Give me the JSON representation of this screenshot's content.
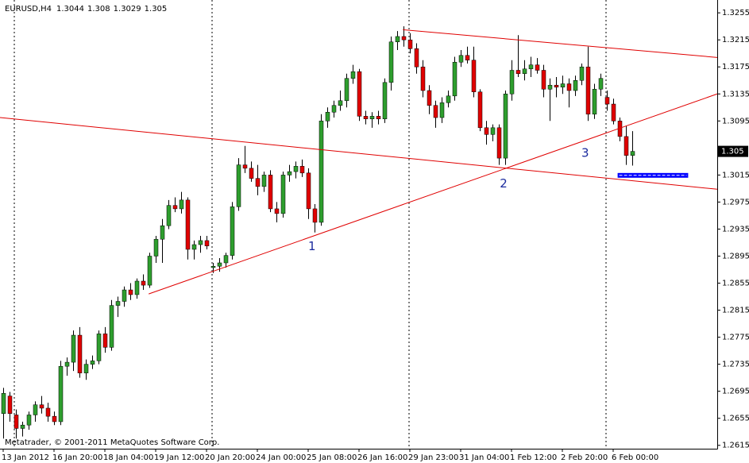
{
  "chart_data": {
    "type": "candlestick",
    "title": "EURUSD,H4",
    "footer": "Metatrader, © 2001-2011 MetaQuotes Software Corp.",
    "categories": [
      "13 Jan 2012",
      null,
      null,
      null,
      null,
      null,
      null,
      null,
      "16 Jan 20:00",
      null,
      null,
      null,
      null,
      null,
      null,
      null,
      "18 Jan 04:00",
      null,
      null,
      null,
      null,
      null,
      null,
      null,
      "19 Jan 12:00",
      null,
      null,
      null,
      null,
      null,
      null,
      null,
      "20 Jan 20:00",
      null,
      null,
      null,
      null,
      null,
      null,
      null,
      "24 Jan 00:00",
      null,
      null,
      null,
      null,
      null,
      null,
      null,
      "25 Jan 08:00",
      null,
      null,
      null,
      null,
      null,
      null,
      null,
      "26 Jan 16:00",
      null,
      null,
      null,
      null,
      null,
      null,
      null,
      "29 Jan 23:00",
      null,
      null,
      null,
      null,
      null,
      null,
      null,
      "31 Jan 04:00",
      null,
      null,
      null,
      null,
      null,
      null,
      null,
      "1 Feb 12:00",
      null,
      null,
      null,
      null,
      null,
      null,
      null,
      "2 Feb 20:00",
      null,
      null,
      null,
      null,
      null,
      null,
      null,
      "6 Feb 00:00",
      null,
      null,
      null
    ],
    "open": [
      1.2662,
      1.2688,
      1.266,
      1.264,
      1.2645,
      1.266,
      1.2675,
      1.267,
      1.2658,
      1.265,
      1.2732,
      1.2738,
      1.2778,
      1.2722,
      1.2735,
      1.274,
      1.278,
      1.276,
      1.2822,
      1.2828,
      1.2845,
      1.2838,
      1.2858,
      1.2852,
      1.2895,
      1.292,
      1.294,
      1.297,
      1.2965,
      1.2978,
      1.2905,
      1.2912,
      1.2918,
      1.2878,
      1.288,
      1.2885,
      1.2896,
      1.2968,
      1.303,
      1.3025,
      1.301,
      1.2998,
      1.3015,
      1.2965,
      1.2958,
      1.3015,
      1.302,
      1.3028,
      1.3018,
      1.2965,
      1.2945,
      1.3095,
      1.3108,
      1.3118,
      1.3125,
      1.3158,
      1.3168,
      1.3102,
      1.3098,
      1.3102,
      1.3098,
      1.3152,
      1.3212,
      1.322,
      1.3215,
      1.3202,
      1.3175,
      1.314,
      1.3118,
      1.31,
      1.3122,
      1.3132,
      1.3182,
      1.3192,
      1.3185,
      1.3138,
      1.3085,
      1.3075,
      1.3085,
      1.304,
      1.3135,
      1.317,
      1.3165,
      1.3172,
      1.3178,
      1.317,
      1.3142,
      1.3148,
      1.3145,
      1.315,
      1.314,
      1.3155,
      1.3175,
      1.3105,
      1.3142,
      1.313,
      1.312,
      1.3095,
      1.3072,
      1.3044
    ],
    "high": [
      1.27,
      1.2694,
      1.2668,
      1.265,
      1.2665,
      1.268,
      1.2688,
      1.2678,
      1.2665,
      1.274,
      1.2745,
      1.2785,
      1.279,
      1.2742,
      1.2748,
      1.2785,
      1.279,
      1.283,
      1.2835,
      1.285,
      1.2855,
      1.2862,
      1.2868,
      1.29,
      1.2925,
      1.295,
      1.2978,
      1.2982,
      1.299,
      1.2982,
      1.2918,
      1.2925,
      1.2925,
      1.2885,
      1.2892,
      1.29,
      1.2975,
      1.304,
      1.3058,
      1.3035,
      1.303,
      1.302,
      1.3022,
      1.2975,
      1.302,
      1.303,
      1.3035,
      1.3038,
      1.3025,
      1.2972,
      1.3105,
      1.3115,
      1.3125,
      1.314,
      1.3165,
      1.3178,
      1.3172,
      1.311,
      1.3108,
      1.311,
      1.3158,
      1.322,
      1.3228,
      1.3235,
      1.3225,
      1.321,
      1.3185,
      1.3148,
      1.3125,
      1.313,
      1.314,
      1.319,
      1.32,
      1.3205,
      1.3205,
      1.3142,
      1.3095,
      1.309,
      1.309,
      1.314,
      1.3185,
      1.3222,
      1.3185,
      1.319,
      1.3188,
      1.3178,
      1.3158,
      1.316,
      1.3162,
      1.3158,
      1.3162,
      1.318,
      1.3205,
      1.315,
      1.3165,
      1.314,
      1.3128,
      1.31,
      1.3088,
      1.308
    ],
    "low": [
      1.2625,
      1.265,
      1.2625,
      1.2628,
      1.2638,
      1.265,
      1.2662,
      1.265,
      1.2645,
      1.2645,
      1.2718,
      1.2725,
      1.2715,
      1.2712,
      1.2728,
      1.2735,
      1.2752,
      1.2755,
      1.2805,
      1.282,
      1.283,
      1.2832,
      1.2845,
      1.2848,
      1.2885,
      1.2885,
      1.2935,
      1.296,
      1.2958,
      1.289,
      1.289,
      1.29,
      1.2905,
      1.287,
      1.2872,
      1.2878,
      1.289,
      1.2962,
      1.3018,
      1.3005,
      1.2985,
      1.299,
      1.296,
      1.2945,
      1.2952,
      1.3005,
      1.301,
      1.3012,
      1.295,
      1.293,
      1.294,
      1.3085,
      1.31,
      1.311,
      1.3115,
      1.315,
      1.3095,
      1.309,
      1.3085,
      1.309,
      1.3092,
      1.314,
      1.32,
      1.3205,
      1.3195,
      1.3165,
      1.313,
      1.3105,
      1.3085,
      1.3092,
      1.3115,
      1.3125,
      1.3175,
      1.318,
      1.313,
      1.308,
      1.306,
      1.3065,
      1.303,
      1.303,
      1.3125,
      1.316,
      1.3155,
      1.316,
      1.3165,
      1.313,
      1.3095,
      1.313,
      1.3135,
      1.3115,
      1.3132,
      1.3148,
      1.3095,
      1.3098,
      1.3132,
      1.311,
      1.309,
      1.3065,
      1.303,
      1.3029
    ],
    "close": [
      1.2692,
      1.2662,
      1.264,
      1.2645,
      1.266,
      1.2675,
      1.267,
      1.2658,
      1.265,
      1.2732,
      1.2738,
      1.2778,
      1.2722,
      1.2735,
      1.274,
      1.278,
      1.276,
      1.2822,
      1.2828,
      1.2845,
      1.2838,
      1.2858,
      1.2852,
      1.2895,
      1.292,
      1.294,
      1.297,
      1.2965,
      1.2978,
      1.2905,
      1.2912,
      1.2918,
      1.291,
      1.288,
      1.2885,
      1.2896,
      1.2968,
      1.303,
      1.3025,
      1.301,
      1.2998,
      1.3015,
      1.2965,
      1.2958,
      1.3015,
      1.302,
      1.3028,
      1.3018,
      1.2965,
      1.2945,
      1.3095,
      1.3108,
      1.3118,
      1.3125,
      1.3158,
      1.3168,
      1.3102,
      1.3098,
      1.3102,
      1.3098,
      1.3152,
      1.3212,
      1.322,
      1.3215,
      1.3202,
      1.3175,
      1.314,
      1.3118,
      1.31,
      1.3122,
      1.3132,
      1.3182,
      1.3192,
      1.3185,
      1.3138,
      1.3085,
      1.3075,
      1.3085,
      1.304,
      1.3135,
      1.317,
      1.3165,
      1.3172,
      1.3178,
      1.317,
      1.3142,
      1.3148,
      1.3145,
      1.315,
      1.314,
      1.3155,
      1.3175,
      1.3105,
      1.3142,
      1.3158,
      1.312,
      1.3095,
      1.3072,
      1.3044,
      1.305
    ],
    "up_color": "#2e9e2e",
    "down_color": "#e00000",
    "ylim": [
      1.261,
      1.3274
    ],
    "yticks": [
      1.2615,
      1.2655,
      1.2695,
      1.2735,
      1.2775,
      1.2815,
      1.2855,
      1.2895,
      1.2935,
      1.2975,
      1.3015,
      1.3095,
      1.3135,
      1.3175,
      1.3215,
      1.3255
    ],
    "trendline_color": "#e00000",
    "trendlines": [
      {
        "x": [
          -0.5,
          112.4
        ],
        "y": [
          1.31,
          1.2994
        ]
      },
      {
        "x": [
          22.9,
          112.4
        ],
        "y": [
          1.2839,
          1.3135
        ]
      },
      {
        "x": [
          62.9,
          112.4
        ],
        "y": [
          1.323,
          1.3189
        ]
      }
    ],
    "level_box": {
      "x": [
        96.7,
        107.8
      ],
      "y": [
        1.3011,
        1.3018
      ],
      "color": "#0000ff"
    },
    "annotation_color": "#1a2a9e",
    "annotations": [
      {
        "text": "1",
        "x": 48.6,
        "y": 1.2909
      },
      {
        "text": "2",
        "x": 78.75,
        "y": 1.3002
      },
      {
        "text": "3",
        "x": 91.6,
        "y": 1.3047
      }
    ]
  }
}
